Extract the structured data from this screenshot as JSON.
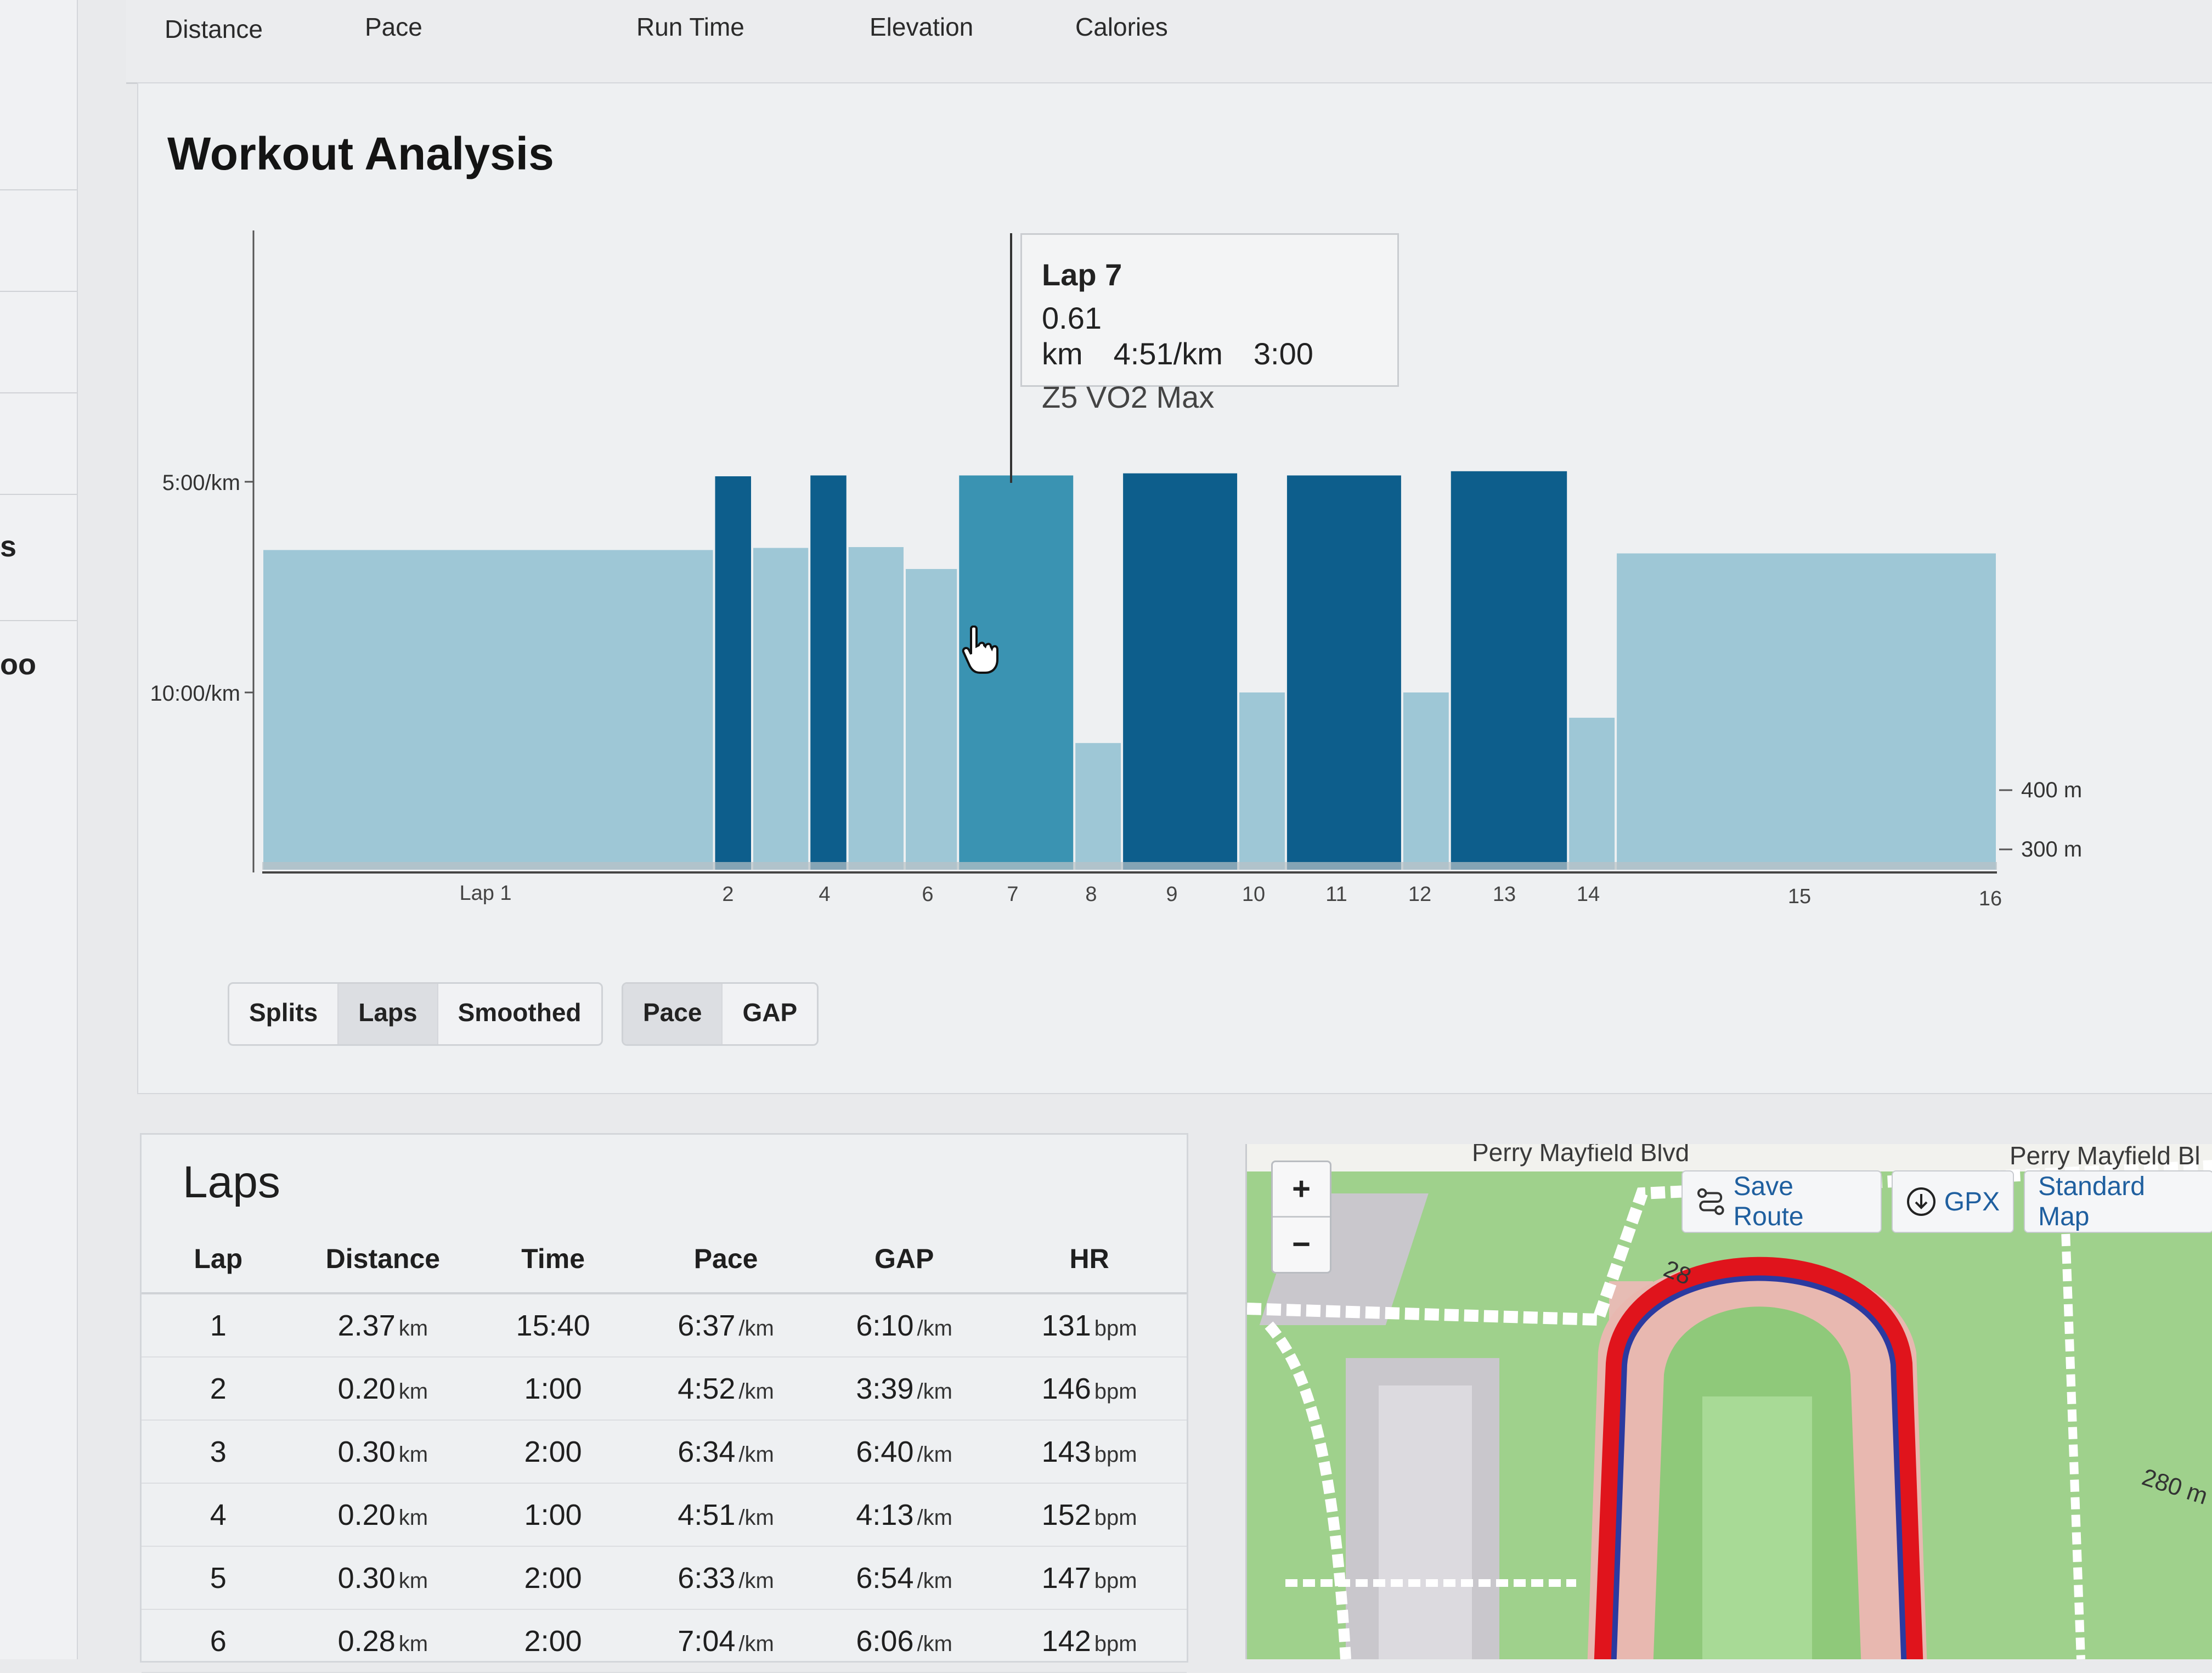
{
  "top_tabs": [
    "Distance",
    "Pace",
    "Run Time",
    "Elevation",
    "Calories"
  ],
  "rail_texts": [
    "s",
    "oo"
  ],
  "panel": {
    "title": "Workout Analysis"
  },
  "chart_data": {
    "type": "bar",
    "title": "",
    "y_tick_labels": [
      "5:00/km",
      "10:00/km"
    ],
    "y_right_tick_labels": [
      "400 m",
      "300 m"
    ],
    "x_tick_labels": [
      "Lap 1",
      "2",
      "4",
      "6",
      "7",
      "8",
      "9",
      "10",
      "11",
      "12",
      "13",
      "14",
      "15",
      "16"
    ],
    "laps": [
      {
        "lap": 1,
        "distance_km": 2.37,
        "pace_min_per_km": 6.62,
        "zone": "low"
      },
      {
        "lap": 2,
        "distance_km": 0.2,
        "pace_min_per_km": 4.87,
        "zone": "high"
      },
      {
        "lap": 3,
        "distance_km": 0.3,
        "pace_min_per_km": 6.57,
        "zone": "low"
      },
      {
        "lap": 4,
        "distance_km": 0.2,
        "pace_min_per_km": 4.85,
        "zone": "high"
      },
      {
        "lap": 5,
        "distance_km": 0.3,
        "pace_min_per_km": 6.55,
        "zone": "low"
      },
      {
        "lap": 6,
        "distance_km": 0.28,
        "pace_min_per_km": 7.07,
        "zone": "low"
      },
      {
        "lap": 7,
        "distance_km": 0.61,
        "pace_min_per_km": 4.85,
        "zone": "selected"
      },
      {
        "lap": 8,
        "distance_km": 0.25,
        "pace_min_per_km": 11.2,
        "zone": "low"
      },
      {
        "lap": 9,
        "distance_km": 0.61,
        "pace_min_per_km": 4.8,
        "zone": "high"
      },
      {
        "lap": 10,
        "distance_km": 0.25,
        "pace_min_per_km": 10.0,
        "zone": "low"
      },
      {
        "lap": 11,
        "distance_km": 0.61,
        "pace_min_per_km": 4.85,
        "zone": "high"
      },
      {
        "lap": 12,
        "distance_km": 0.25,
        "pace_min_per_km": 10.0,
        "zone": "low"
      },
      {
        "lap": 13,
        "distance_km": 0.62,
        "pace_min_per_km": 4.75,
        "zone": "high"
      },
      {
        "lap": 14,
        "distance_km": 0.25,
        "pace_min_per_km": 10.6,
        "zone": "low"
      },
      {
        "lap": 15,
        "distance_km": 2.0,
        "pace_min_per_km": 6.7,
        "zone": "low"
      }
    ],
    "colors": {
      "low": "#9ec7d6",
      "high": "#0d5e8c",
      "selected": "#3a93b2",
      "grid": "#c8d8df"
    }
  },
  "tooltip": {
    "title": "Lap 7",
    "distance": "0.61 km",
    "pace": "4:51/km",
    "time": "3:00",
    "zone": "Z5 VO2 Max"
  },
  "toggles": {
    "source": [
      "Splits",
      "Laps",
      "Smoothed"
    ],
    "source_active": "Laps",
    "metric": [
      "Pace",
      "GAP"
    ],
    "metric_active": "Pace"
  },
  "laps": {
    "title": "Laps",
    "columns": [
      "Lap",
      "Distance",
      "Time",
      "Pace",
      "GAP",
      "HR"
    ],
    "rows": [
      {
        "lap": "1",
        "distance": "2.37",
        "distance_unit": "km",
        "time": "15:40",
        "pace": "6:37",
        "pace_unit": "/km",
        "gap": "6:10",
        "gap_unit": "/km",
        "hr": "131",
        "hr_unit": "bpm"
      },
      {
        "lap": "2",
        "distance": "0.20",
        "distance_unit": "km",
        "time": "1:00",
        "pace": "4:52",
        "pace_unit": "/km",
        "gap": "3:39",
        "gap_unit": "/km",
        "hr": "146",
        "hr_unit": "bpm"
      },
      {
        "lap": "3",
        "distance": "0.30",
        "distance_unit": "km",
        "time": "2:00",
        "pace": "6:34",
        "pace_unit": "/km",
        "gap": "6:40",
        "gap_unit": "/km",
        "hr": "143",
        "hr_unit": "bpm"
      },
      {
        "lap": "4",
        "distance": "0.20",
        "distance_unit": "km",
        "time": "1:00",
        "pace": "4:51",
        "pace_unit": "/km",
        "gap": "4:13",
        "gap_unit": "/km",
        "hr": "152",
        "hr_unit": "bpm"
      },
      {
        "lap": "5",
        "distance": "0.30",
        "distance_unit": "km",
        "time": "2:00",
        "pace": "6:33",
        "pace_unit": "/km",
        "gap": "6:54",
        "gap_unit": "/km",
        "hr": "147",
        "hr_unit": "bpm"
      },
      {
        "lap": "6",
        "distance": "0.28",
        "distance_unit": "km",
        "time": "2:00",
        "pace": "7:04",
        "pace_unit": "/km",
        "gap": "6:06",
        "gap_unit": "/km",
        "hr": "142",
        "hr_unit": "bpm"
      }
    ]
  },
  "map": {
    "road_label_1": "Perry Mayfield Blvd",
    "road_label_2": "Perry Mayfield Bl",
    "zoom_in": "+",
    "zoom_out": "−",
    "save_route": "Save Route",
    "gpx": "GPX",
    "standard_map": "Standard Map",
    "dist_label_1": "28",
    "dist_label_2": "280 m",
    "icons": [
      "route-icon",
      "download-icon"
    ],
    "colors": {
      "grass": "#9fd18c",
      "track": "#e8b8b0",
      "route_outer": "#e0141c",
      "route_inner": "#2b3aa0"
    }
  }
}
